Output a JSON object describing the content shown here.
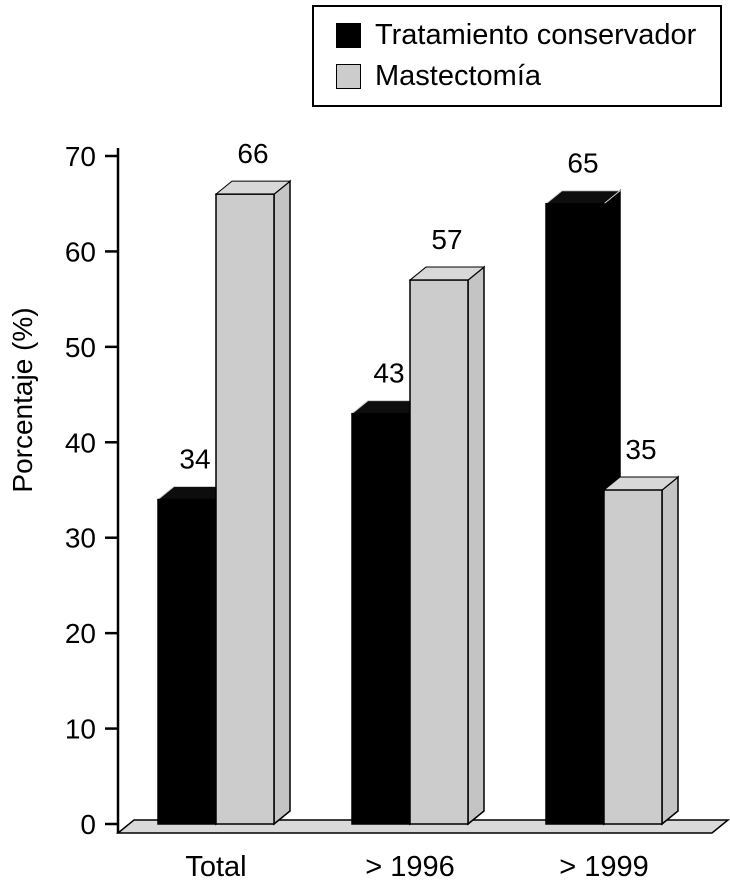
{
  "chart_data": {
    "type": "bar",
    "style": "3d-bar",
    "title": "",
    "xlabel": "",
    "ylabel": "Porcentaje (%)",
    "ylim": [
      0,
      70
    ],
    "yticks": [
      0,
      10,
      20,
      30,
      40,
      50,
      60,
      70
    ],
    "categories": [
      "Total",
      "> 1996",
      "> 1999"
    ],
    "series": [
      {
        "name": "Tratamiento conservador",
        "color": "#000000",
        "values": [
          34,
          43,
          65
        ]
      },
      {
        "name": "Mastectomía",
        "color": "#cccccc",
        "values": [
          66,
          57,
          35
        ]
      }
    ],
    "legend_position": "top",
    "grid": false,
    "value_labels_shown": true
  },
  "colors": {
    "bar_black": "#000000",
    "bar_black_top": "#0d0d0d",
    "bar_gray": "#cccccc",
    "bar_gray_top": "#d8d8d8",
    "bar_gray_side": "#c4c4c4",
    "floor": "#d9d9d9",
    "outline": "#000000",
    "background": "#ffffff"
  }
}
